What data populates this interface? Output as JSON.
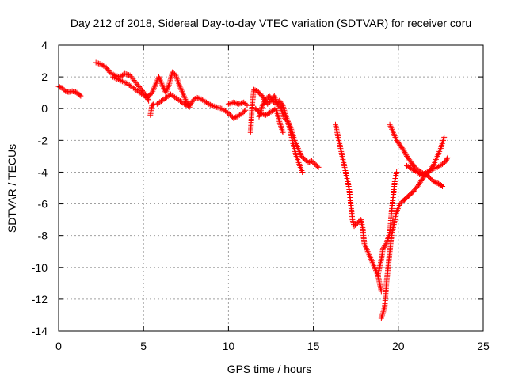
{
  "chart_data": {
    "type": "scatter",
    "title": "Day 212 of 2018, Sidereal Day-to-day VTEC variation (SDTVAR) for receiver coru",
    "xlabel": "GPS time / hours",
    "ylabel": "SDTVAR / TECUs",
    "xlim": [
      0,
      25
    ],
    "ylim": [
      -14,
      4
    ],
    "xticks": [
      0,
      5,
      10,
      15,
      20,
      25
    ],
    "yticks": [
      -14,
      -12,
      -10,
      -8,
      -6,
      -4,
      -2,
      0,
      2,
      4
    ],
    "grid": true,
    "marker": "+",
    "color": "#ff0000",
    "segments": [
      [
        [
          0.0,
          1.4
        ],
        [
          0.2,
          1.3
        ],
        [
          0.4,
          1.1
        ],
        [
          0.6,
          1.05
        ],
        [
          0.8,
          1.1
        ],
        [
          1.0,
          1.05
        ],
        [
          1.2,
          0.9
        ],
        [
          1.3,
          0.8
        ]
      ],
      [
        [
          2.2,
          2.9
        ],
        [
          2.5,
          2.8
        ],
        [
          2.8,
          2.6
        ],
        [
          3.0,
          2.3
        ],
        [
          3.3,
          2.1
        ],
        [
          3.6,
          2.0
        ],
        [
          3.9,
          2.2
        ],
        [
          4.2,
          2.1
        ],
        [
          4.5,
          1.7
        ],
        [
          4.8,
          1.3
        ],
        [
          5.1,
          0.9
        ],
        [
          5.3,
          0.5
        ]
      ],
      [
        [
          3.2,
          2.0
        ],
        [
          3.6,
          1.8
        ],
        [
          4.0,
          1.6
        ],
        [
          4.4,
          1.3
        ],
        [
          4.8,
          1.0
        ],
        [
          5.2,
          0.7
        ],
        [
          5.5,
          1.0
        ],
        [
          5.7,
          1.5
        ],
        [
          5.9,
          2.0
        ],
        [
          6.1,
          1.5
        ],
        [
          6.3,
          1.0
        ],
        [
          6.5,
          1.5
        ],
        [
          6.7,
          2.3
        ],
        [
          6.9,
          2.1
        ],
        [
          7.1,
          1.5
        ],
        [
          7.3,
          1.0
        ],
        [
          7.5,
          0.5
        ],
        [
          7.7,
          0.2
        ],
        [
          7.9,
          0.5
        ],
        [
          8.1,
          0.7
        ],
        [
          8.4,
          0.6
        ],
        [
          8.7,
          0.4
        ],
        [
          9.0,
          0.2
        ],
        [
          9.3,
          0.1
        ],
        [
          9.6,
          0.0
        ],
        [
          9.9,
          -0.2
        ],
        [
          10.1,
          -0.4
        ],
        [
          10.3,
          -0.6
        ],
        [
          10.5,
          -0.5
        ],
        [
          10.8,
          -0.3
        ],
        [
          11.0,
          -0.1
        ]
      ],
      [
        [
          5.8,
          0.3
        ],
        [
          6.2,
          0.6
        ],
        [
          6.6,
          0.9
        ],
        [
          7.0,
          0.6
        ],
        [
          7.4,
          0.3
        ],
        [
          7.7,
          0.1
        ]
      ],
      [
        [
          5.4,
          -0.4
        ],
        [
          5.5,
          0.2
        ],
        [
          5.6,
          0.3
        ]
      ],
      [
        [
          10.0,
          0.3
        ],
        [
          10.3,
          0.4
        ],
        [
          10.6,
          0.3
        ],
        [
          10.9,
          0.4
        ],
        [
          11.1,
          0.2
        ]
      ],
      [
        [
          11.3,
          -1.5
        ],
        [
          11.4,
          0.3
        ],
        [
          11.5,
          1.2
        ],
        [
          11.7,
          1.1
        ],
        [
          11.9,
          0.9
        ],
        [
          12.1,
          0.6
        ],
        [
          12.3,
          0.3
        ],
        [
          12.5,
          0.5
        ],
        [
          12.7,
          0.8
        ],
        [
          12.9,
          0.3
        ],
        [
          13.1,
          0.0
        ],
        [
          13.3,
          -0.6
        ],
        [
          13.5,
          -0.8
        ],
        [
          13.7,
          -1.3
        ],
        [
          13.9,
          -2.0
        ],
        [
          14.1,
          -2.5
        ],
        [
          14.3,
          -3.0
        ],
        [
          14.5,
          -3.2
        ],
        [
          14.7,
          -3.4
        ],
        [
          14.9,
          -3.3
        ],
        [
          15.1,
          -3.5
        ],
        [
          15.3,
          -3.7
        ]
      ],
      [
        [
          11.8,
          -0.5
        ],
        [
          12.0,
          0.2
        ],
        [
          12.2,
          0.6
        ],
        [
          12.4,
          0.8
        ],
        [
          12.6,
          0.5
        ],
        [
          12.8,
          0.3
        ],
        [
          13.0,
          0.5
        ],
        [
          13.2,
          0.2
        ],
        [
          13.4,
          -0.5
        ],
        [
          13.6,
          -1.2
        ],
        [
          13.8,
          -2.2
        ],
        [
          14.0,
          -3.0
        ],
        [
          14.2,
          -3.6
        ],
        [
          14.35,
          -4.0
        ]
      ],
      [
        [
          11.6,
          0.0
        ],
        [
          11.9,
          -0.3
        ],
        [
          12.2,
          -0.4
        ],
        [
          12.5,
          -0.2
        ],
        [
          12.8,
          0.0
        ],
        [
          13.0,
          -0.8
        ],
        [
          13.2,
          -1.5
        ]
      ],
      [
        [
          16.3,
          -1.0
        ],
        [
          16.5,
          -2.0
        ],
        [
          16.7,
          -3.0
        ],
        [
          16.9,
          -4.0
        ],
        [
          17.1,
          -5.0
        ],
        [
          17.2,
          -6.0
        ],
        [
          17.3,
          -7.0
        ],
        [
          17.4,
          -7.4
        ],
        [
          17.6,
          -7.2
        ],
        [
          17.8,
          -7.0
        ],
        [
          17.9,
          -7.5
        ],
        [
          18.0,
          -8.5
        ],
        [
          18.2,
          -9.0
        ],
        [
          18.4,
          -9.5
        ],
        [
          18.6,
          -10.0
        ],
        [
          18.8,
          -10.5
        ],
        [
          18.9,
          -11.0
        ],
        [
          19.0,
          -11.5
        ]
      ],
      [
        [
          19.0,
          -13.2
        ],
        [
          19.2,
          -12.5
        ],
        [
          19.3,
          -11.0
        ],
        [
          19.4,
          -10.0
        ],
        [
          19.5,
          -9.0
        ],
        [
          19.6,
          -8.0
        ],
        [
          19.8,
          -7.0
        ],
        [
          19.9,
          -6.5
        ],
        [
          20.1,
          -6.0
        ],
        [
          20.3,
          -5.8
        ],
        [
          20.6,
          -5.5
        ],
        [
          20.9,
          -5.2
        ],
        [
          21.2,
          -4.8
        ],
        [
          21.5,
          -4.3
        ],
        [
          21.8,
          -4.0
        ],
        [
          22.1,
          -3.5
        ],
        [
          22.3,
          -3.0
        ],
        [
          22.5,
          -2.5
        ],
        [
          22.7,
          -1.8
        ]
      ],
      [
        [
          18.8,
          -10.5
        ],
        [
          19.0,
          -9.5
        ],
        [
          19.1,
          -8.8
        ],
        [
          19.3,
          -8.5
        ],
        [
          19.5,
          -7.8
        ],
        [
          19.6,
          -6.5
        ],
        [
          19.7,
          -5.5
        ],
        [
          19.8,
          -4.5
        ],
        [
          19.9,
          -4.0
        ]
      ],
      [
        [
          19.5,
          -1.0
        ],
        [
          19.7,
          -1.5
        ],
        [
          19.9,
          -2.0
        ],
        [
          20.1,
          -2.3
        ],
        [
          20.3,
          -2.6
        ],
        [
          20.5,
          -3.0
        ],
        [
          20.7,
          -3.3
        ],
        [
          20.9,
          -3.6
        ],
        [
          21.1,
          -3.8
        ],
        [
          21.3,
          -4.0
        ],
        [
          21.5,
          -4.1
        ],
        [
          21.7,
          -4.2
        ],
        [
          21.9,
          -4.4
        ],
        [
          22.1,
          -4.6
        ],
        [
          22.3,
          -4.7
        ],
        [
          22.5,
          -4.8
        ],
        [
          22.6,
          -4.9
        ]
      ],
      [
        [
          20.5,
          -3.6
        ],
        [
          20.8,
          -3.8
        ],
        [
          21.1,
          -4.0
        ],
        [
          21.4,
          -4.2
        ],
        [
          21.7,
          -4.0
        ],
        [
          22.0,
          -3.8
        ],
        [
          22.3,
          -3.7
        ],
        [
          22.6,
          -3.5
        ],
        [
          22.8,
          -3.3
        ],
        [
          22.9,
          -3.1
        ]
      ]
    ]
  }
}
